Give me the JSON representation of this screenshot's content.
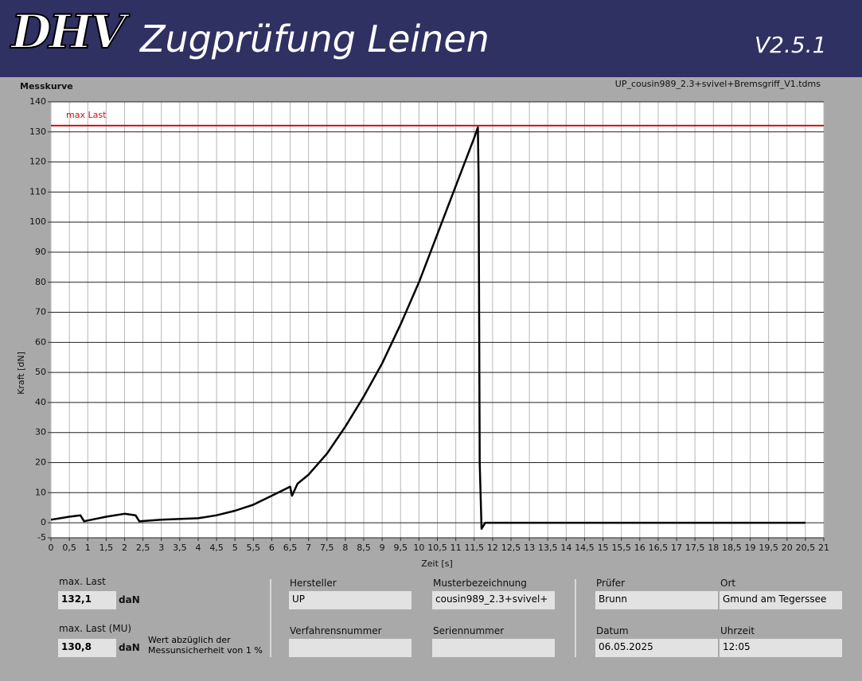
{
  "header": {
    "logo": "DHV",
    "title": "Zugprüfung Leinen",
    "version": "V2.5.1"
  },
  "chart_data": {
    "type": "line",
    "title": "Messkurve",
    "subtitle": "UP_cousin989_2.3+svivel+Bremsgriff_V1.tdms",
    "x_label": "Zeit [s]",
    "y_label": "Kraft [dN]",
    "xlim": [
      0,
      21
    ],
    "ylim": [
      -5,
      140
    ],
    "xticks": [
      0,
      {
        "value": 0.5,
        "label": "0,5"
      },
      1,
      {
        "value": 1.5,
        "label": "1,5"
      },
      2,
      {
        "value": 2.5,
        "label": "2,5"
      },
      3,
      {
        "value": 3.5,
        "label": "3,5"
      },
      4,
      {
        "value": 4.5,
        "label": "4,5"
      },
      5,
      {
        "value": 5.5,
        "label": "5,5"
      },
      6,
      {
        "value": 6.5,
        "label": "6,5"
      },
      7,
      {
        "value": 7.5,
        "label": "7,5"
      },
      8,
      {
        "value": 8.5,
        "label": "8,5"
      },
      9,
      {
        "value": 9.5,
        "label": "9,5"
      },
      10,
      {
        "value": 10.5,
        "label": "10,5"
      },
      11,
      {
        "value": 11.5,
        "label": "11,5"
      },
      12,
      {
        "value": 12.5,
        "label": "12,5"
      },
      13,
      {
        "value": 13.5,
        "label": "13,5"
      },
      14,
      {
        "value": 14.5,
        "label": "14,5"
      },
      15,
      {
        "value": 15.5,
        "label": "15,5"
      },
      16,
      {
        "value": 16.5,
        "label": "16,5"
      },
      17,
      {
        "value": 17.5,
        "label": "17,5"
      },
      18,
      {
        "value": 18.5,
        "label": "18,5"
      },
      19,
      {
        "value": 19.5,
        "label": "19,5"
      },
      20,
      {
        "value": 20.5,
        "label": "20,5"
      },
      21
    ],
    "yticks": [
      -5,
      0,
      10,
      20,
      30,
      40,
      50,
      60,
      70,
      80,
      90,
      100,
      110,
      120,
      130,
      140
    ],
    "grid": true,
    "x": [
      0,
      0.5,
      0.8,
      0.9,
      1.5,
      2,
      2.3,
      2.4,
      3,
      4,
      4.5,
      5,
      5.5,
      6,
      6.5,
      6.55,
      6.7,
      7,
      7.5,
      8,
      8.5,
      9,
      9.5,
      10,
      10.5,
      11,
      11.5,
      11.6,
      11.62,
      11.65,
      11.7,
      11.8,
      20.5
    ],
    "series": [
      {
        "color": "#000000",
        "values": [
          1,
          2,
          2.5,
          0.5,
          2,
          3,
          2.5,
          0.5,
          1,
          1.5,
          2.5,
          4,
          6,
          9,
          12,
          9,
          13,
          16,
          23,
          32,
          42,
          53,
          66,
          80,
          96,
          112,
          128,
          131.5,
          115,
          20,
          -2,
          0,
          0
        ]
      }
    ],
    "max_line": {
      "label": "max Last",
      "value": 132.1,
      "color": "#d01010"
    }
  },
  "panel": {
    "max_last": {
      "label": "max. Last",
      "value": "132,1",
      "unit": "daN"
    },
    "max_last_mu": {
      "label": "max. Last (MU)",
      "value": "130,8",
      "unit": "daN",
      "note": "Wert abzüglich der Messunsicherheit von 1 %"
    },
    "fields": [
      {
        "label": "Hersteller",
        "value": "UP"
      },
      {
        "label": "Musterbezeichnung",
        "value": "cousin989_2.3+svivel+"
      },
      {
        "label": "Verfahrensnummer"
      },
      {
        "label": "Seriennummer"
      },
      {
        "label": "Prüfer",
        "value": "Brunn"
      },
      {
        "label": "Ort",
        "value": "Gmund am Tegerssee"
      },
      {
        "label": "Datum",
        "value": "06.05.2025"
      },
      {
        "label": "Uhrzeit",
        "value": "12:05"
      }
    ]
  }
}
